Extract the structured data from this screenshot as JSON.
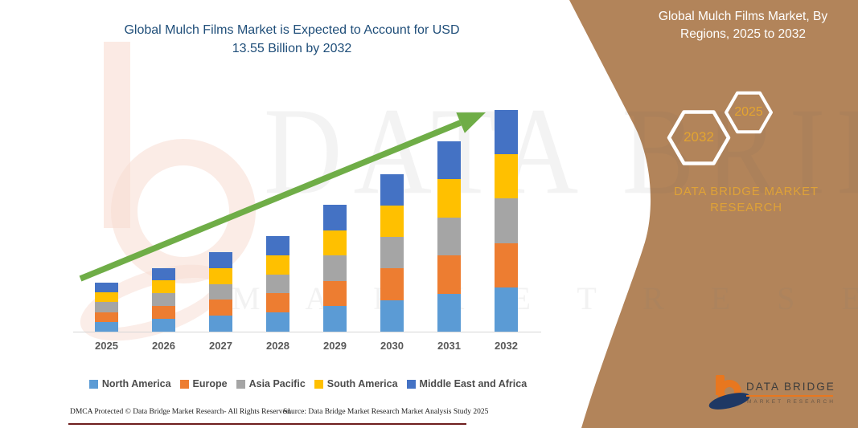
{
  "header": {
    "chart_title_line1": "Global Mulch Films Market is Expected to Account for USD",
    "chart_title_line2": "13.55 Billion by 2032"
  },
  "side_panel": {
    "title_line1": "Global Mulch Films Market, By",
    "title_line2": "Regions, 2025 to 2032",
    "hex_year_large": "2032",
    "hex_year_small": "2025",
    "brand_line1": "DATA BRIDGE MARKET",
    "brand_line2": "RESEARCH"
  },
  "logo": {
    "name_text": "DATA BRIDGE",
    "sub_text": "MARKET RESEARCH"
  },
  "watermark": {
    "big_text": "DATA BRIDGE",
    "spaced_text": "M A R K E T   R E S E A R C H"
  },
  "footer": {
    "dmca_text": "DMCA Protected © Data Bridge Market Research-  All Rights Reserved.",
    "source_text": "Source: Data Bridge Market Research  Market Analysis Study 2025"
  },
  "colors": {
    "panel_brown": "#B2845A",
    "title_blue": "#1F4E79",
    "arrow_green": "#6FAD47",
    "gold_text": "#DFA237",
    "footer_rule_maroon": "#6E1E1E"
  },
  "chart_data": {
    "type": "bar",
    "stacked": true,
    "title": "Global Mulch Films Market is Expected to Account for USD 13.55 Billion by 2032",
    "unit": "USD Billion (values estimated from bar heights; 2032 total anchored to 13.55)",
    "categories": [
      "2025",
      "2026",
      "2027",
      "2028",
      "2029",
      "2030",
      "2031",
      "2032"
    ],
    "totals_estimated": [
      3.0,
      3.9,
      4.85,
      5.85,
      7.75,
      9.65,
      11.65,
      13.55
    ],
    "series": [
      {
        "name": "North America",
        "color": "#5B9BD5",
        "values": [
          0.6,
          0.78,
          0.97,
          1.17,
          1.55,
          1.93,
          2.33,
          2.71
        ]
      },
      {
        "name": "Europe",
        "color": "#ED7D31",
        "values": [
          0.6,
          0.78,
          0.97,
          1.17,
          1.55,
          1.93,
          2.33,
          2.71
        ]
      },
      {
        "name": "Asia Pacific",
        "color": "#A5A5A5",
        "values": [
          0.6,
          0.78,
          0.97,
          1.17,
          1.55,
          1.93,
          2.33,
          2.71
        ]
      },
      {
        "name": "South America",
        "color": "#FFC000",
        "values": [
          0.6,
          0.78,
          0.97,
          1.17,
          1.55,
          1.93,
          2.33,
          2.71
        ]
      },
      {
        "name": "Middle East and Africa",
        "color": "#4472C4",
        "values": [
          0.6,
          0.78,
          0.97,
          1.17,
          1.55,
          1.93,
          2.33,
          2.71
        ]
      }
    ],
    "legend_position": "bottom",
    "axis": {
      "x_visible": true,
      "y_visible": false,
      "gridlines": false
    },
    "annotation": "green upward trend arrow from 2025 bar to 2032 bar"
  }
}
